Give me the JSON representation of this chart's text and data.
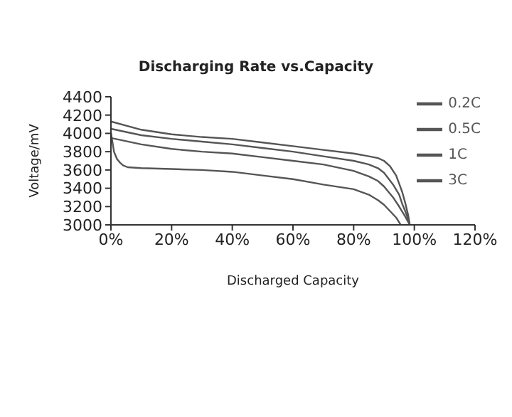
{
  "chart_data": {
    "type": "line",
    "title": "Discharging Rate vs.Capacity",
    "xlabel": "Discharged Capacity",
    "ylabel": "Voltage/mV",
    "xlim": [
      0,
      120
    ],
    "xticks": [
      {
        "value": 0,
        "label": "0%"
      },
      {
        "value": 20,
        "label": "20%"
      },
      {
        "value": 40,
        "label": "40%"
      },
      {
        "value": 60,
        "label": "60%"
      },
      {
        "value": 80,
        "label": "80%"
      },
      {
        "value": 100,
        "label": "100%"
      },
      {
        "value": 120,
        "label": "120%"
      }
    ],
    "ylim": [
      3000,
      4400
    ],
    "yticks": [
      3000,
      3200,
      3400,
      3600,
      3800,
      4000,
      4200,
      4400
    ],
    "grid": false,
    "legend": "top right",
    "marker": "none",
    "line_style": "solid",
    "series": [
      {
        "name": "0.2C",
        "color": "#555555",
        "x": [
          0,
          10,
          20,
          30,
          40,
          50,
          60,
          70,
          80,
          85,
          88,
          90,
          92,
          94,
          95,
          96,
          97,
          98,
          98.5
        ],
        "values": [
          4130,
          4040,
          3990,
          3960,
          3940,
          3900,
          3860,
          3820,
          3780,
          3750,
          3730,
          3700,
          3640,
          3540,
          3450,
          3360,
          3240,
          3100,
          3000
        ]
      },
      {
        "name": "0.5C",
        "color": "#555555",
        "x": [
          0,
          10,
          20,
          30,
          40,
          50,
          60,
          70,
          80,
          85,
          88,
          90,
          93,
          95,
          96,
          97,
          98,
          98.5
        ],
        "values": [
          4050,
          3980,
          3940,
          3910,
          3880,
          3840,
          3800,
          3750,
          3700,
          3660,
          3620,
          3570,
          3440,
          3330,
          3230,
          3150,
          3060,
          3000
        ]
      },
      {
        "name": "1C",
        "color": "#555555",
        "x": [
          0,
          10,
          20,
          30,
          40,
          50,
          60,
          70,
          80,
          85,
          88,
          90,
          93,
          95,
          97,
          98,
          98.5
        ],
        "values": [
          3950,
          3880,
          3830,
          3800,
          3780,
          3740,
          3700,
          3660,
          3590,
          3530,
          3480,
          3420,
          3300,
          3200,
          3090,
          3030,
          3000
        ]
      },
      {
        "name": "3C",
        "color": "#555555",
        "x": [
          0,
          1,
          2,
          3,
          4,
          5.5,
          10,
          20,
          30,
          40,
          50,
          60,
          70,
          80,
          85,
          88,
          90,
          92,
          94,
          95.5
        ],
        "values": [
          4010,
          3800,
          3720,
          3680,
          3650,
          3630,
          3620,
          3610,
          3600,
          3580,
          3540,
          3500,
          3440,
          3390,
          3330,
          3270,
          3220,
          3150,
          3080,
          3000
        ]
      }
    ]
  }
}
